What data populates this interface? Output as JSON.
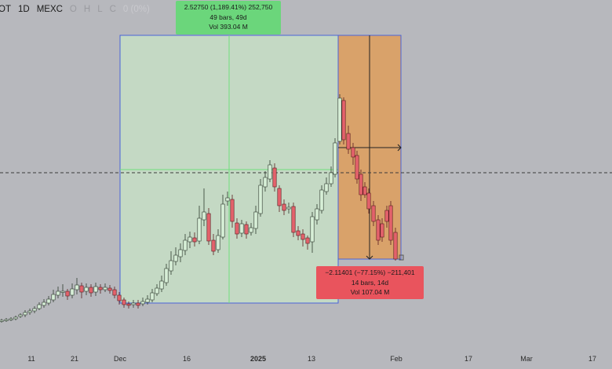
{
  "header": {
    "symbol": "OT",
    "interval": "1D",
    "exchange": "MEXC",
    "o_label": "O",
    "h_label": "H",
    "l_label": "L",
    "c_label": "C",
    "change": "0 (0%)"
  },
  "measure_up": {
    "line1": "2.52750 (1,189.41%) 252,750",
    "line2": "49 bars, 49d",
    "line3": "Vol 393.04 M"
  },
  "measure_down": {
    "line1": "−2.11401 (−77.15%) −211,401",
    "line2": "14 bars, 14d",
    "line3": "Vol 107.04 M"
  },
  "x_axis": [
    "11",
    "21",
    "Dec",
    "16",
    "2025",
    "13",
    "Feb",
    "17",
    "Mar",
    "17"
  ],
  "colors": {
    "background": "#b7b8bd",
    "up_candle": "#d7efd7",
    "down_candle": "#e3626b",
    "measure_up_fill": "#c4d9c4",
    "measure_down_fill": "#d9a26a",
    "measure_border": "#4a63d9",
    "label_up": "#6bd67b",
    "label_down": "#e9545d"
  },
  "icons": [
    "long-arrow-right-icon",
    "down-arrow-icon",
    "price-scale-marker-icon"
  ]
}
